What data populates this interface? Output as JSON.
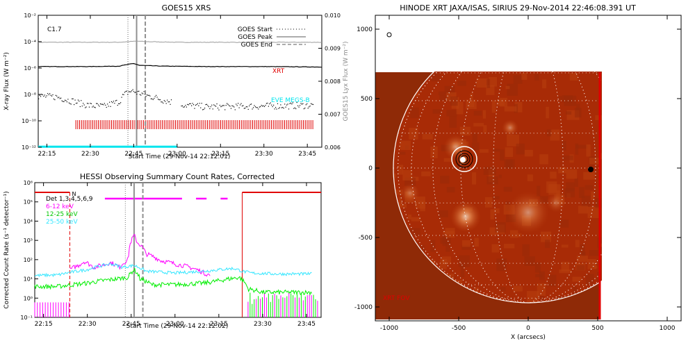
{
  "colors": {
    "goes_long": "#9a9a9a",
    "xrt": "#000000",
    "eve": "#00e5ee",
    "red": "#e00000",
    "magenta": "#ff00ff",
    "green": "#00ee00",
    "cyan": "#33e6ff",
    "marker_grey": "#909090",
    "sun_bg": "#a82b06",
    "sun_limb": "#ffffff"
  },
  "chart_data": [
    {
      "type": "line",
      "title": "GOES15 XRS",
      "ylabel": "X-ray Flux (W m⁻²)",
      "y2label": "GOES15 Lyx Flux (W m⁻²)",
      "xlabel": "Start Time (29-Nov-14 22:12:01)",
      "class_label": "C1.7",
      "xlim": [
        "22:12",
        "23:50"
      ],
      "x_ticks": [
        "22:15",
        "22:30",
        "22:45",
        "23:00",
        "23:15",
        "23:30",
        "23:45"
      ],
      "ylim": [
        1e-12,
        0.01
      ],
      "y_scale": "log",
      "y_ticks": [
        "10⁻¹²",
        "10⁻¹⁰",
        "10⁻⁸",
        "10⁻⁶",
        "10⁻⁴",
        "10⁻²"
      ],
      "y2lim": [
        0.006,
        0.01
      ],
      "y2_ticks": [
        "0.006",
        "0.007",
        "0.008",
        "0.009",
        "0.010"
      ],
      "legend": [
        "GOES Start",
        "GOES Peak",
        "GOES End"
      ],
      "markers": {
        "start": "22:43",
        "peak": "22:46",
        "end": "22:49"
      },
      "series": [
        {
          "name": "",
          "x": [
            "22:12",
            "22:30",
            "22:40",
            "22:46",
            "22:50",
            "23:00",
            "23:20",
            "23:50"
          ],
          "values": [
            9e-05,
            9e-05,
            9e-05,
            0.00011,
            0.0001,
            9e-05,
            9e-05,
            9e-05
          ]
        },
        {
          "name": "XRT",
          "x": [
            "22:12",
            "22:30",
            "22:40",
            "22:45",
            "22:47",
            "22:55",
            "23:10",
            "23:30",
            "23:50"
          ],
          "values": [
            1.3e-06,
            1.3e-06,
            1.4e-06,
            2.2e-06,
            1.6e-06,
            1.4e-06,
            1.3e-06,
            1.3e-06,
            1.2e-06
          ]
        },
        {
          "name": "",
          "x": [
            "22:12",
            "22:18",
            "22:22",
            "22:27",
            "22:30",
            "22:35",
            "22:40",
            "22:44",
            "22:46",
            "22:50",
            "22:55",
            "23:00",
            "23:05",
            "23:10",
            "23:20",
            "23:30",
            "23:40",
            "23:47"
          ],
          "values": [
            8e-09,
            7e-09,
            4e-09,
            2e-09,
            1.5e-09,
            1.3e-09,
            3e-09,
            2e-08,
            1.5e-08,
            8e-09,
            4e-09,
            2e-09,
            1.5e-09,
            1.2e-09,
            1.3e-09,
            1.4e-09,
            1.5e-09,
            1.6e-09
          ]
        },
        {
          "name": "EVE MEGS-B",
          "x": [
            "22:12",
            "23:00"
          ],
          "values": [
            1.1e-12,
            1.1e-12
          ]
        }
      ],
      "xrt_coverage": [
        "22:25",
        "23:47"
      ]
    },
    {
      "type": "line",
      "title": "HESSI Observing Summary Count Rates, Corrected",
      "ylabel": "Corrected Count Rate (s⁻¹ detector⁻¹)",
      "xlabel": "Start Time (29-Nov-14 22:12:02)",
      "xlim": [
        "22:12",
        "23:50"
      ],
      "x_ticks": [
        "22:15",
        "22:30",
        "22:45",
        "23:00",
        "23:15",
        "23:30",
        "23:45"
      ],
      "ylim": [
        0.1,
        1000000
      ],
      "y_scale": "log",
      "y_ticks": [
        "10⁻¹",
        "10⁰",
        "10¹",
        "10²",
        "10³",
        "10⁴",
        "10⁵",
        "10⁶"
      ],
      "legend": [
        "Det 1,3,4,5,6,9",
        "6-12 keV",
        "12-25 keV",
        "25-50 keV"
      ],
      "night_markers": [
        "22:24",
        "23:23"
      ],
      "n_label": "N",
      "gray_markers": {
        "start": "22:43",
        "peak": "22:46",
        "end": "22:49"
      },
      "series": [
        {
          "name": "6-12 keV",
          "x": [
            "22:24",
            "22:27",
            "22:29",
            "22:32",
            "22:35",
            "22:38",
            "22:41",
            "22:44",
            "22:45",
            "22:46",
            "22:47",
            "22:50",
            "22:55",
            "23:00",
            "23:05",
            "23:10",
            "23:12"
          ],
          "values": [
            30,
            50,
            80,
            40,
            50,
            70,
            40,
            100,
            900,
            1800,
            800,
            200,
            90,
            60,
            40,
            20,
            15
          ]
        },
        {
          "name": "12-25 keV",
          "x": [
            "22:12",
            "22:20",
            "22:25",
            "22:30",
            "22:35",
            "22:40",
            "22:44",
            "22:46",
            "22:48",
            "22:52",
            "23:00",
            "23:10",
            "23:15",
            "23:22",
            "23:25",
            "23:30",
            "23:40",
            "23:47"
          ],
          "values": [
            4,
            4,
            5,
            6,
            8,
            10,
            12,
            30,
            10,
            5,
            5,
            6,
            8,
            12,
            3,
            2,
            2,
            2
          ]
        },
        {
          "name": "25-50 keV",
          "x": [
            "22:12",
            "22:20",
            "22:30",
            "22:38",
            "22:42",
            "22:46",
            "22:50",
            "23:00",
            "23:10",
            "23:20",
            "23:23",
            "23:26",
            "23:35",
            "23:47"
          ],
          "values": [
            15,
            16,
            30,
            60,
            40,
            50,
            25,
            20,
            25,
            35,
            25,
            20,
            18,
            18
          ]
        }
      ]
    },
    {
      "type": "heatmap",
      "title": "HINODE XRT JAXA/ISAS, SIRIUS 29-Nov-2014 22:46:08.391 UT",
      "xlabel": "X (arcsecs)",
      "ylabel": "",
      "xlim": [
        -1100,
        1100
      ],
      "ylim": [
        -1100,
        1100
      ],
      "x_ticks": [
        "-1000",
        "-500",
        "0",
        "500",
        "1000"
      ],
      "y_ticks": [
        "1000",
        "500",
        "0",
        "-500",
        "-1000"
      ],
      "fov_label": "XRT FOV",
      "fov": {
        "x": [
          -1100,
          520
        ],
        "y": [
          -1100,
          690
        ]
      },
      "limb_radius": 970,
      "flare_location": [
        -470,
        60
      ],
      "features": [
        {
          "x": -470,
          "y": 60,
          "r": 40,
          "brightness": 1.0
        },
        {
          "x": -520,
          "y": 150,
          "r": 90,
          "brightness": 0.55
        },
        {
          "x": -450,
          "y": -350,
          "r": 110,
          "brightness": 0.75
        },
        {
          "x": 0,
          "y": -320,
          "r": 150,
          "brightness": 0.5
        },
        {
          "x": -130,
          "y": 290,
          "r": 60,
          "brightness": 0.45
        },
        {
          "x": -850,
          "y": -180,
          "r": 70,
          "brightness": 0.35
        },
        {
          "x": 200,
          "y": -250,
          "r": 70,
          "brightness": 0.3
        }
      ]
    }
  ]
}
